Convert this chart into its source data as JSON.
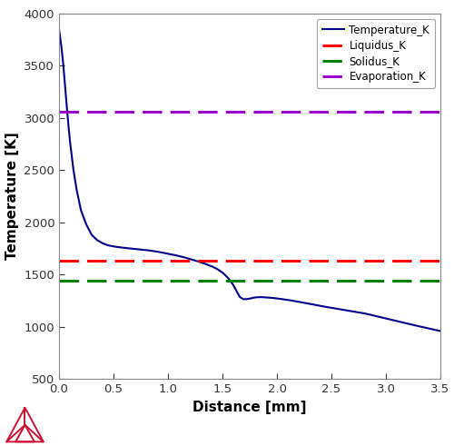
{
  "title": "",
  "xlabel": "Distance [mm]",
  "ylabel": "Temperature [K]",
  "xlim": [
    0,
    3.5
  ],
  "ylim": [
    500,
    4000
  ],
  "xticks": [
    0.0,
    0.5,
    1.0,
    1.5,
    2.0,
    2.5,
    3.0,
    3.5
  ],
  "yticks": [
    500,
    1000,
    1500,
    2000,
    2500,
    3000,
    3500,
    4000
  ],
  "liquidus_K": 1630,
  "solidus_K": 1440,
  "evaporation_K": 3060,
  "temp_color": "#00008B",
  "liquidus_color": "#FF0000",
  "solidus_color": "#008000",
  "evaporation_color": "#9900CC",
  "legend_labels": [
    "Temperature_K",
    "Liquidus_K",
    "Solidus_K",
    "Evaporation_K"
  ],
  "temp_x": [
    0.0,
    0.02,
    0.04,
    0.06,
    0.08,
    0.1,
    0.13,
    0.16,
    0.2,
    0.25,
    0.3,
    0.35,
    0.4,
    0.45,
    0.5,
    0.55,
    0.6,
    0.65,
    0.7,
    0.75,
    0.8,
    0.85,
    0.9,
    0.95,
    1.0,
    1.05,
    1.1,
    1.15,
    1.2,
    1.25,
    1.3,
    1.35,
    1.4,
    1.45,
    1.5,
    1.55,
    1.6,
    1.63,
    1.66,
    1.69,
    1.72,
    1.75,
    1.78,
    1.81,
    1.85,
    1.9,
    1.95,
    2.0,
    2.1,
    2.2,
    2.3,
    2.4,
    2.6,
    2.8,
    3.0,
    3.2,
    3.5
  ],
  "temp_y": [
    3850,
    3700,
    3500,
    3250,
    3000,
    2780,
    2520,
    2320,
    2120,
    1980,
    1880,
    1830,
    1800,
    1780,
    1770,
    1762,
    1756,
    1750,
    1745,
    1740,
    1735,
    1728,
    1720,
    1710,
    1700,
    1690,
    1678,
    1665,
    1650,
    1635,
    1618,
    1600,
    1580,
    1555,
    1520,
    1470,
    1400,
    1340,
    1285,
    1265,
    1265,
    1270,
    1278,
    1283,
    1285,
    1282,
    1278,
    1272,
    1258,
    1240,
    1220,
    1200,
    1165,
    1130,
    1080,
    1030,
    960
  ],
  "figsize": [
    5.0,
    4.91
  ],
  "dpi": 100,
  "spine_color": "#888888",
  "tick_color": "#333333",
  "label_fontsize": 11,
  "tick_fontsize": 9.5,
  "legend_fontsize": 8.5,
  "triangle_color": "#CC1133"
}
